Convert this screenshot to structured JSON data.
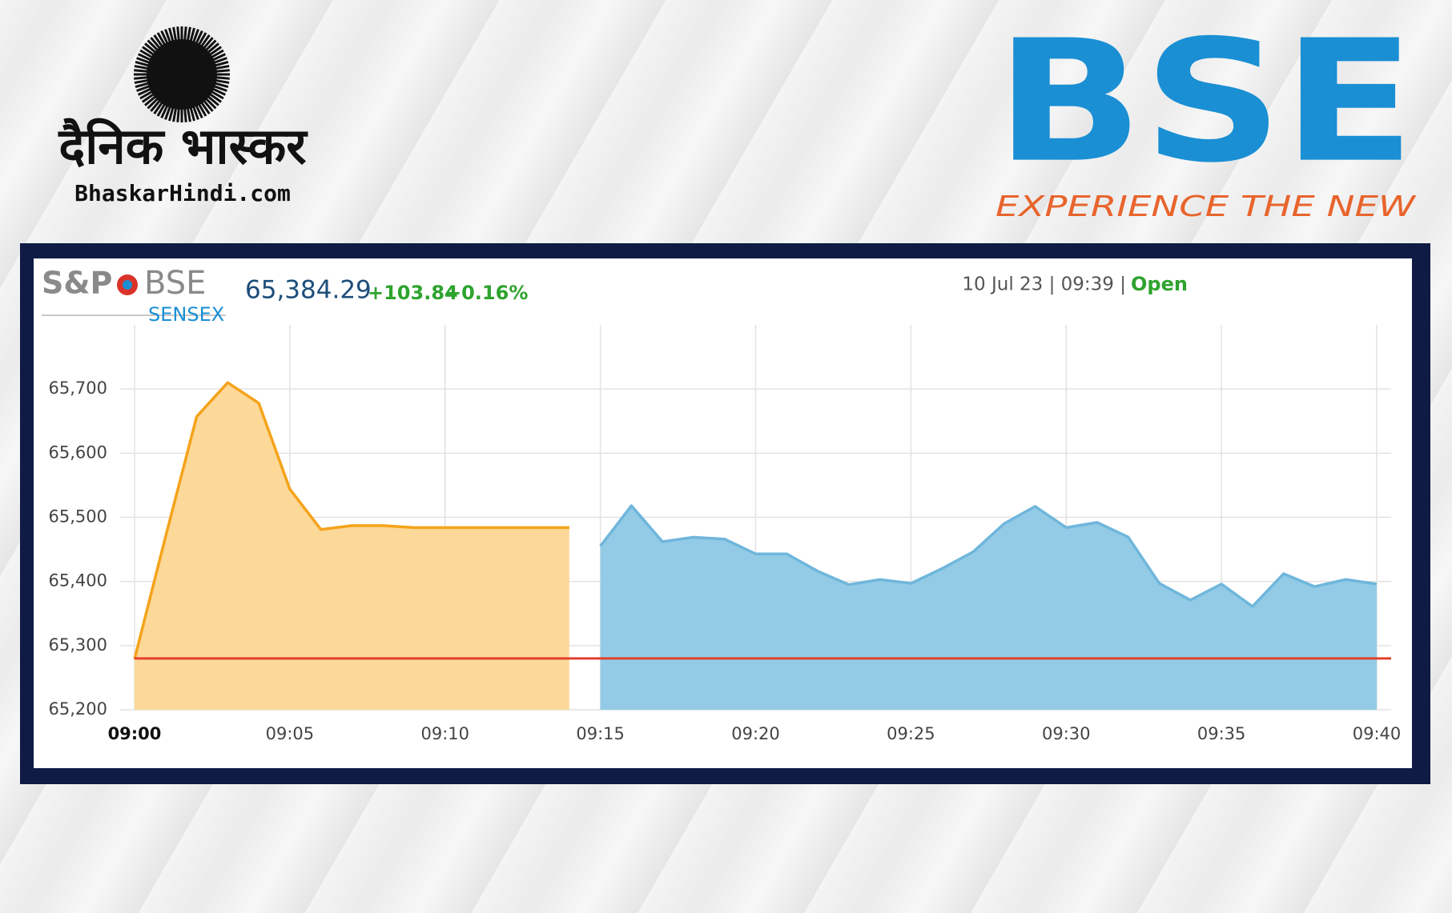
{
  "header": {
    "brand_hindi": "दैनिक भास्कर",
    "brand_site": "BhaskarHindi.com",
    "exchange_logo": "BSE",
    "tagline": "EXPERIENCE THE NEW"
  },
  "chart_data": {
    "type": "area",
    "provider": "S&P",
    "exchange": "BSE",
    "index": "SENSEX",
    "last": "65,384.29",
    "change": "+103.84",
    "change_pct": "+0.16%",
    "timestamp": "10 Jul 23 | 09:39 |",
    "status": "Open",
    "series": [
      {
        "color": "#f5a31a",
        "fill": "#fcd899",
        "x": [
          "09:00",
          "09:01",
          "09:02",
          "09:03",
          "09:04",
          "09:05",
          "09:06",
          "09:07",
          "09:08",
          "09:09",
          "09:10",
          "09:11",
          "09:12",
          "09:13",
          "09:14"
        ],
        "values": [
          65279,
          65470,
          65657,
          65710,
          65678,
          65544,
          65481,
          65487,
          65487,
          65484,
          65484,
          65484,
          65484,
          65484,
          65484
        ]
      },
      {
        "color": "#6fb6dc",
        "fill": "#93cbe6",
        "x": [
          "09:15",
          "09:16",
          "09:17",
          "09:18",
          "09:19",
          "09:20",
          "09:21",
          "09:22",
          "09:23",
          "09:24",
          "09:25",
          "09:26",
          "09:27",
          "09:28",
          "09:29",
          "09:30",
          "09:31",
          "09:32",
          "09:33",
          "09:34",
          "09:35",
          "09:36",
          "09:37",
          "09:38",
          "09:39",
          "09:40"
        ],
        "values": [
          65455,
          65518,
          65462,
          65469,
          65466,
          65443,
          65443,
          65416,
          65395,
          65403,
          65397,
          65420,
          65446,
          65490,
          65517,
          65484,
          65492,
          65469,
          65397,
          65371,
          65396,
          65361,
          65412,
          65392,
          65403,
          65396
        ]
      }
    ],
    "reference_line": {
      "value": 65280,
      "color": "#e2402c"
    },
    "xlim": [
      "09:00",
      "09:40"
    ],
    "xticks": [
      "09:00",
      "09:05",
      "09:10",
      "09:15",
      "09:20",
      "09:25",
      "09:30",
      "09:35",
      "09:40"
    ],
    "ylim": [
      65200,
      65800
    ],
    "yticks": [
      {
        "value": 65200,
        "label": "65,200"
      },
      {
        "value": 65300,
        "label": "65,300"
      },
      {
        "value": 65400,
        "label": "65,400"
      },
      {
        "value": 65500,
        "label": "65,500"
      },
      {
        "value": 65600,
        "label": "65,600"
      },
      {
        "value": 65700,
        "label": "65,700"
      }
    ],
    "grid": true
  }
}
